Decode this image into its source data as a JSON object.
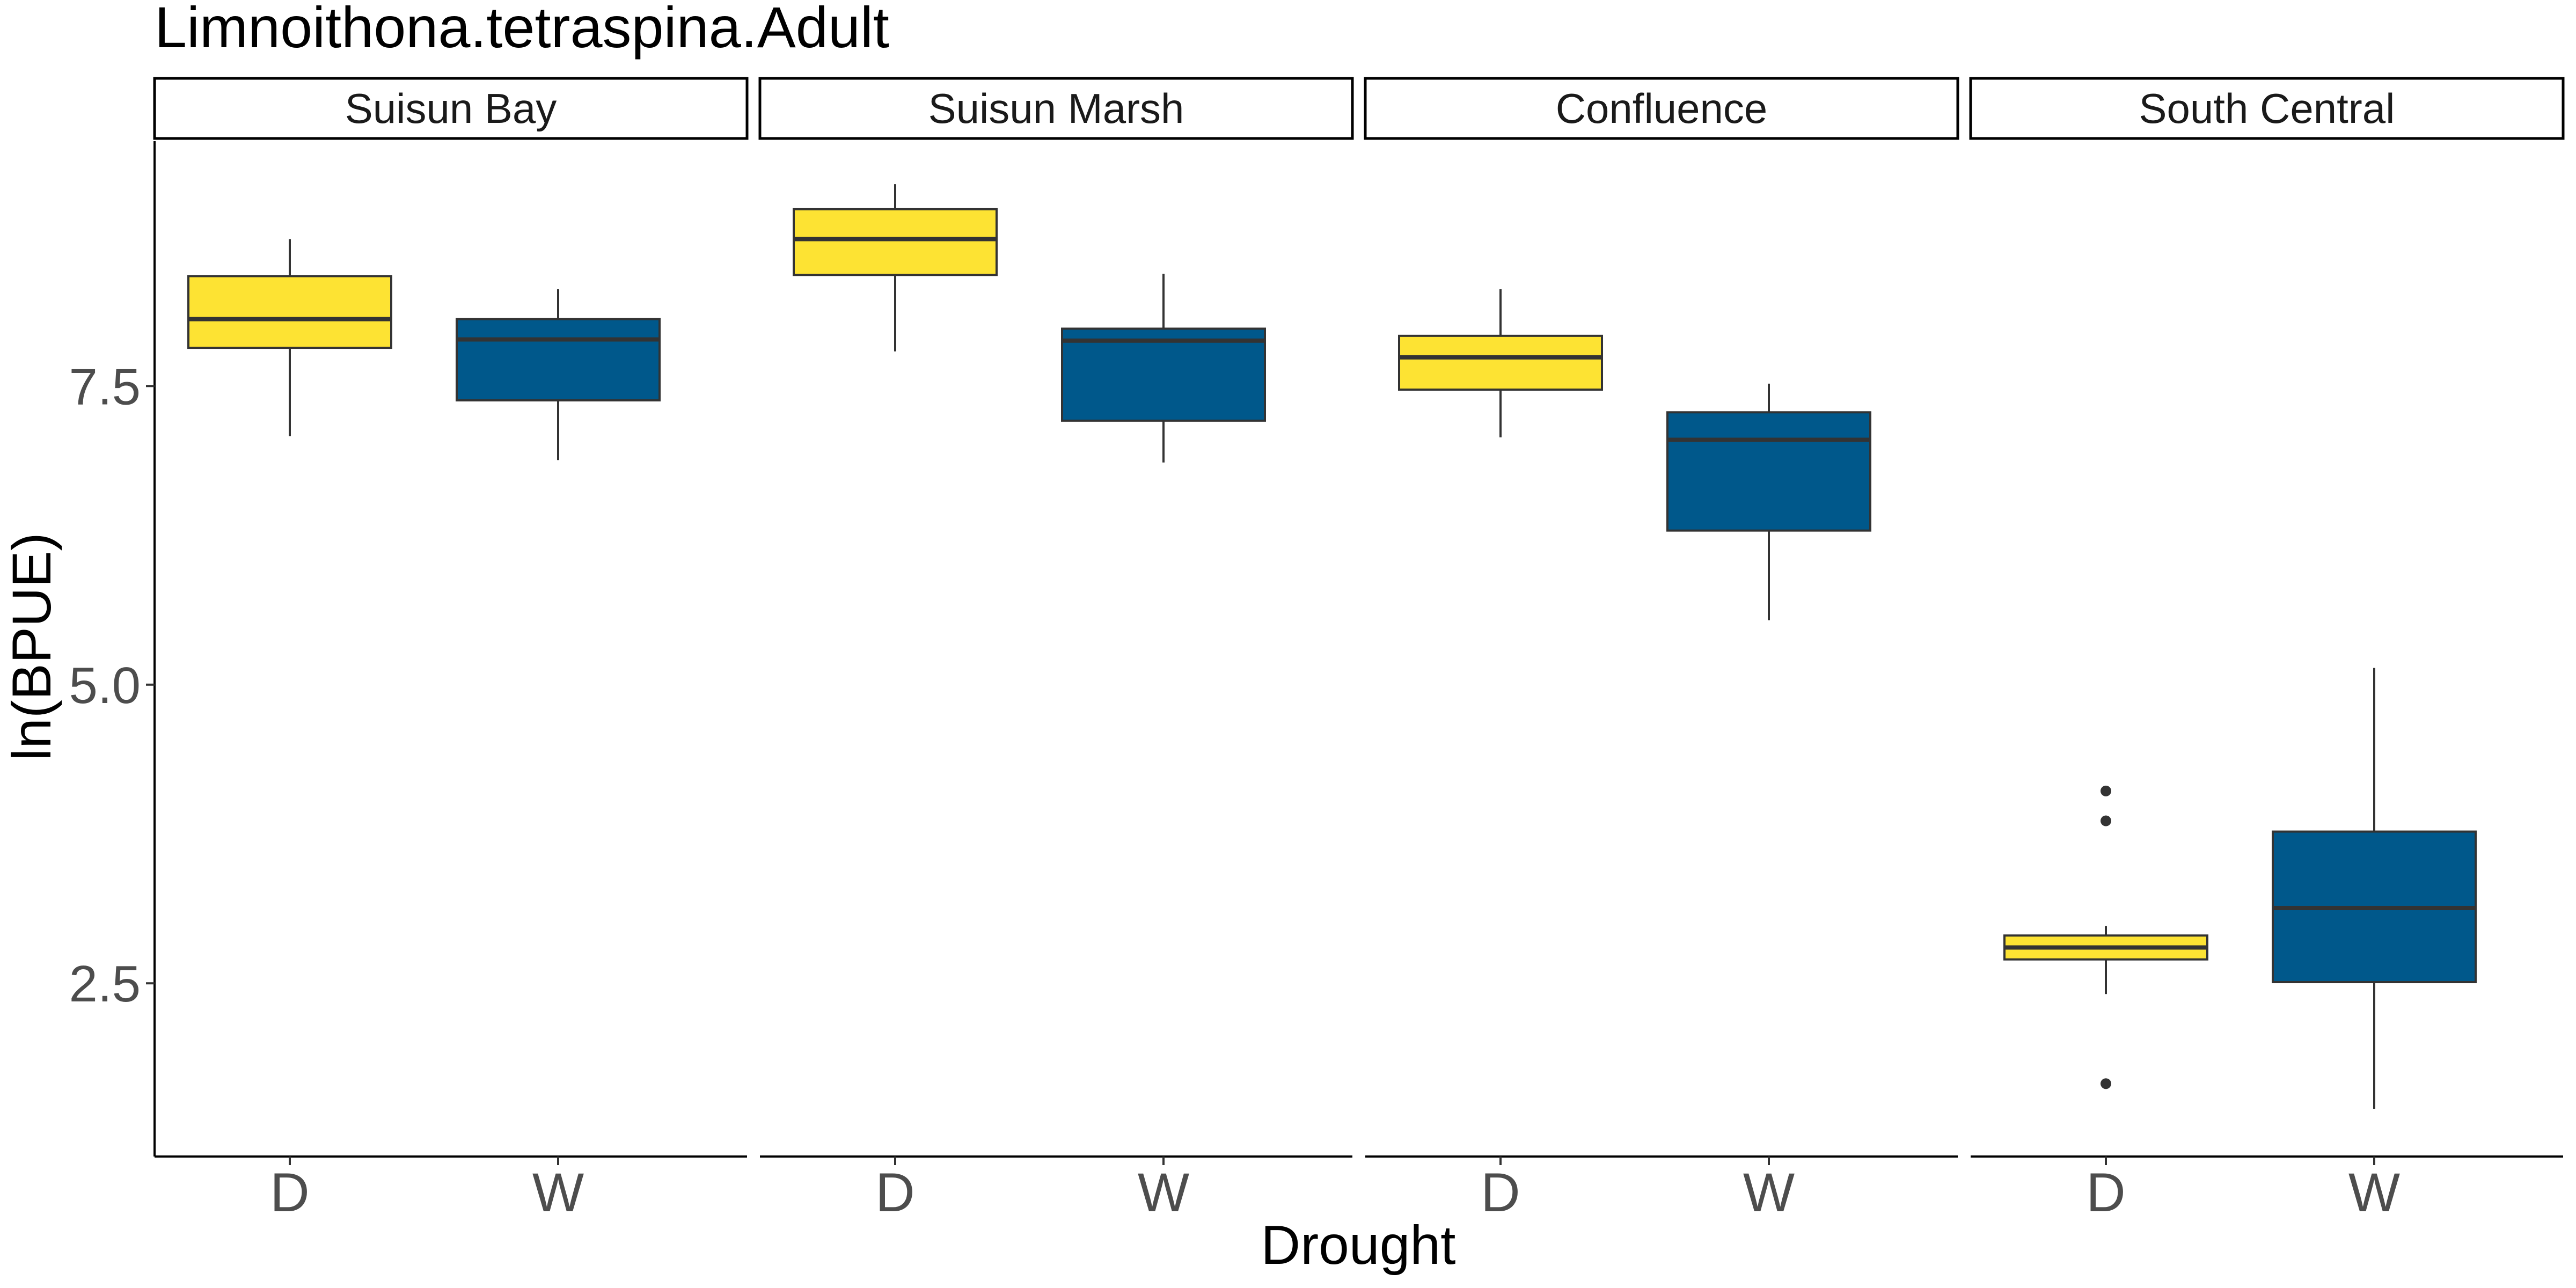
{
  "chart_data": {
    "type": "boxplot",
    "title": "Limnoithona.tetraspina.Adult",
    "xlabel": "Drought",
    "ylabel": "ln(BPUE)",
    "ylim": [
      1.05,
      9.55
    ],
    "yticks": [
      2.5,
      5.0,
      7.5
    ],
    "ytick_labels": [
      "2.5",
      "5.0",
      "7.5"
    ],
    "categories": [
      "D",
      "W"
    ],
    "colors": {
      "D": "#FDE333",
      "W": "#00588B"
    },
    "grid": false,
    "legend": "none",
    "facets": [
      {
        "label": "Suisun Bay",
        "boxes": [
          {
            "group": "D",
            "min": 7.08,
            "q1": 7.82,
            "median": 8.06,
            "q3": 8.42,
            "max": 8.73,
            "outliers": []
          },
          {
            "group": "W",
            "min": 6.88,
            "q1": 7.38,
            "median": 7.89,
            "q3": 8.06,
            "max": 8.31,
            "outliers": []
          }
        ]
      },
      {
        "label": "Suisun Marsh",
        "boxes": [
          {
            "group": "D",
            "min": 7.79,
            "q1": 8.43,
            "median": 8.73,
            "q3": 8.98,
            "max": 9.19,
            "outliers": []
          },
          {
            "group": "W",
            "min": 6.86,
            "q1": 7.21,
            "median": 7.88,
            "q3": 7.98,
            "max": 8.44,
            "outliers": []
          }
        ]
      },
      {
        "label": "Confluence",
        "boxes": [
          {
            "group": "D",
            "min": 7.07,
            "q1": 7.47,
            "median": 7.74,
            "q3": 7.92,
            "max": 8.31,
            "outliers": []
          },
          {
            "group": "W",
            "min": 5.54,
            "q1": 6.29,
            "median": 7.05,
            "q3": 7.28,
            "max": 7.52,
            "outliers": []
          }
        ]
      },
      {
        "label": "South Central",
        "boxes": [
          {
            "group": "D",
            "min": 2.41,
            "q1": 2.7,
            "median": 2.8,
            "q3": 2.9,
            "max": 2.98,
            "outliers": [
              4.11,
              3.86,
              1.66
            ]
          },
          {
            "group": "W",
            "min": 1.45,
            "q1": 2.51,
            "median": 3.13,
            "q3": 3.77,
            "max": 5.14,
            "outliers": []
          }
        ]
      }
    ]
  }
}
